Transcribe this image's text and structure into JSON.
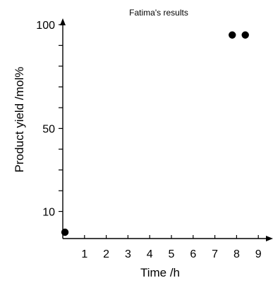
{
  "chart_data": {
    "type": "scatter",
    "title": "Fatima's results",
    "xlabel": "Time /h",
    "ylabel": "Product yield /mol%",
    "xlim": [
      0,
      9.5
    ],
    "ylim": [
      0,
      105
    ],
    "x_ticks": [
      1,
      2,
      3,
      4,
      5,
      6,
      7,
      8,
      9
    ],
    "x_tick_labels": [
      "1",
      "2",
      "3",
      "4",
      "5",
      "6",
      "7",
      "8",
      "9"
    ],
    "y_ticks_minor": [
      10,
      20,
      30,
      40,
      50,
      60,
      70,
      80,
      90,
      100
    ],
    "y_tick_labels": [
      {
        "value": 10,
        "label": "10"
      },
      {
        "value": 50,
        "label": "50"
      },
      {
        "value": 100,
        "label": "100"
      }
    ],
    "grid": false,
    "series": [
      {
        "color": "#000000",
        "points": [
          {
            "x": 0.1,
            "y": 0
          },
          {
            "x": 7.8,
            "y": 95
          },
          {
            "x": 8.4,
            "y": 95
          }
        ]
      }
    ]
  }
}
